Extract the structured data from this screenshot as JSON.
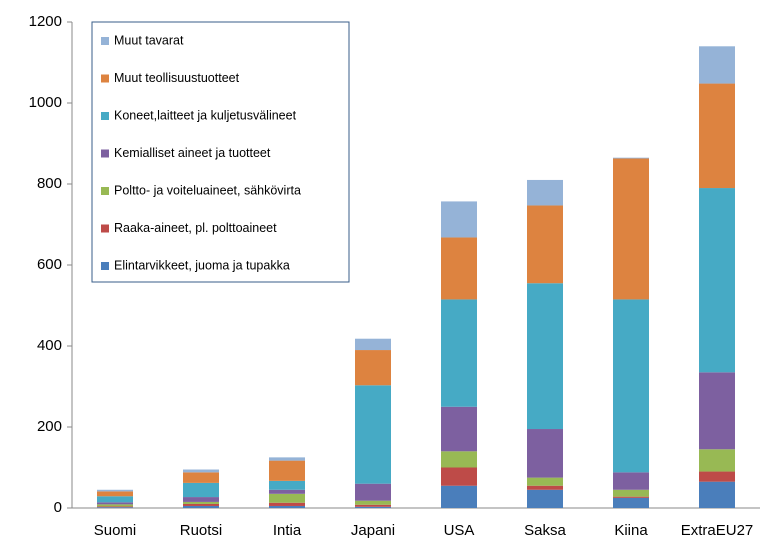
{
  "chart_data": {
    "type": "stacked_bar",
    "categories": [
      "Suomi",
      "Ruotsi",
      "Intia",
      "Japani",
      "USA",
      "Saksa",
      "Kiina",
      "ExtraEU27"
    ],
    "series": [
      {
        "name": "Elintarvikkeet, juoma ja tupakka",
        "color": "#4a7ebb",
        "values": [
          2,
          5,
          5,
          3,
          55,
          45,
          25,
          65
        ]
      },
      {
        "name": "Raaka-aineet, pl. polttoaineet",
        "color": "#be4b48",
        "values": [
          2,
          5,
          8,
          5,
          45,
          10,
          3,
          25
        ]
      },
      {
        "name": "Poltto- ja voiteluaineet, sähkövirta",
        "color": "#98b954",
        "values": [
          5,
          5,
          22,
          10,
          40,
          20,
          17,
          55
        ]
      },
      {
        "name": "Kemialliset aineet ja tuotteet",
        "color": "#7d60a0",
        "values": [
          5,
          12,
          10,
          42,
          110,
          120,
          43,
          190
        ]
      },
      {
        "name": "Koneet,laitteet ja kuljetusvälineet",
        "color": "#46aac5",
        "values": [
          15,
          35,
          22,
          243,
          265,
          360,
          427,
          455
        ]
      },
      {
        "name": "Muut teollisuustuotteet",
        "color": "#dd8340",
        "values": [
          12,
          26,
          50,
          87,
          153,
          192,
          348,
          258
        ]
      },
      {
        "name": "Muut tavarat",
        "color": "#95b3d7",
        "values": [
          4,
          7,
          8,
          28,
          89,
          63,
          2,
          92
        ]
      }
    ],
    "ylim": [
      0,
      1200
    ],
    "yticks": [
      0,
      200,
      400,
      600,
      800,
      1000,
      1200
    ]
  }
}
